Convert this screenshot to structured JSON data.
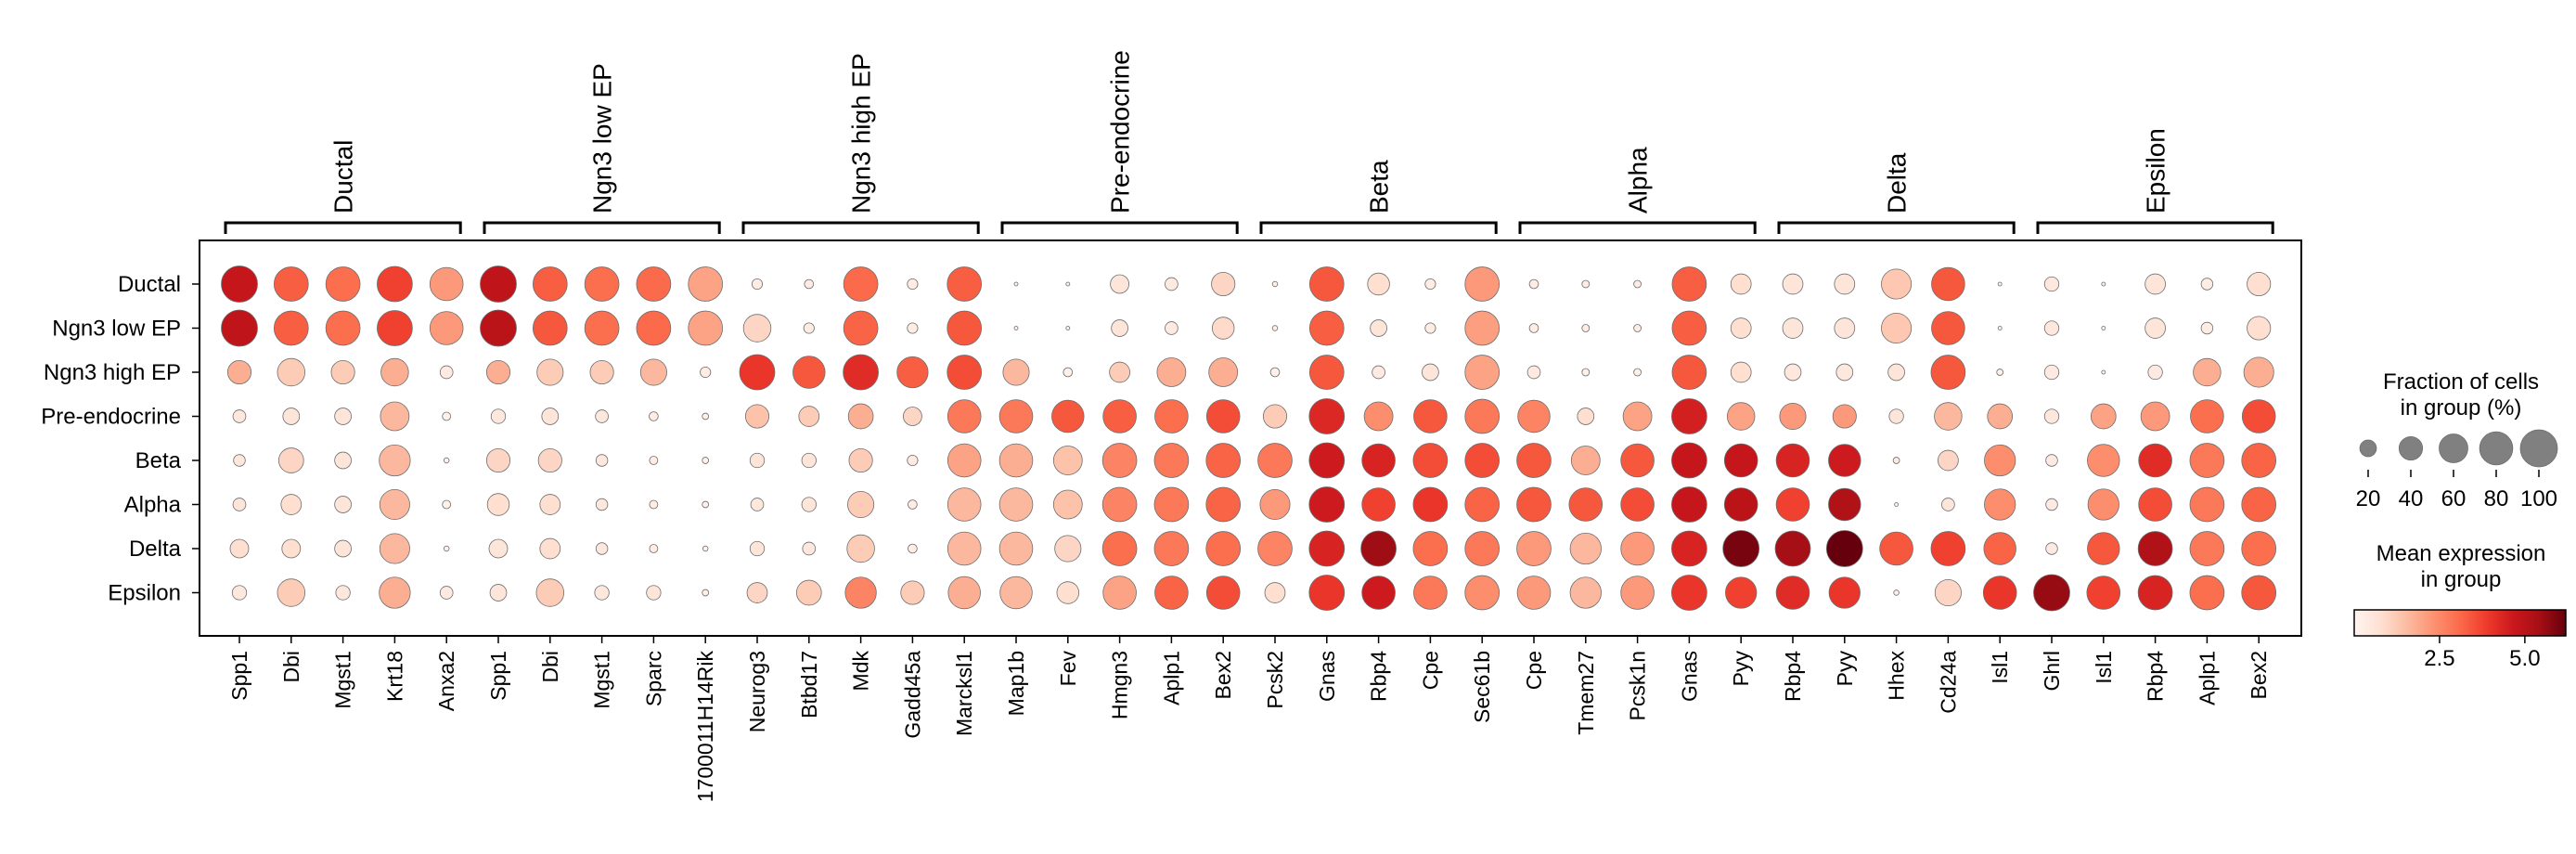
{
  "chart_data": {
    "type": "dotplot",
    "title": "",
    "rows": [
      "Ductal",
      "Ngn3 low EP",
      "Ngn3 high EP",
      "Pre-endocrine",
      "Beta",
      "Alpha",
      "Delta",
      "Epsilon"
    ],
    "group_labels": [
      "Ductal",
      "Ngn3 low EP",
      "Ngn3 high EP",
      "Pre-endocrine",
      "Beta",
      "Alpha",
      "Delta",
      "Epsilon"
    ],
    "groups": [
      {
        "name": "Ductal",
        "start": 0,
        "end": 4
      },
      {
        "name": "Ngn3 low EP",
        "start": 5,
        "end": 9
      },
      {
        "name": "Ngn3 high EP",
        "start": 10,
        "end": 14
      },
      {
        "name": "Pre-endocrine",
        "start": 15,
        "end": 19
      },
      {
        "name": "Beta",
        "start": 20,
        "end": 24
      },
      {
        "name": "Alpha",
        "start": 25,
        "end": 29
      },
      {
        "name": "Delta",
        "start": 30,
        "end": 34
      },
      {
        "name": "Epsilon",
        "start": 35,
        "end": 39
      }
    ],
    "genes": [
      "Spp1",
      "Dbi",
      "Mgst1",
      "Krt18",
      "Anxa2",
      "Spp1",
      "Dbi",
      "Mgst1",
      "Sparc",
      "1700011H14Rik",
      "Neurog3",
      "Btbd17",
      "Mdk",
      "Gadd45a",
      "Marcksl1",
      "Map1b",
      "Fev",
      "Hmgn3",
      "Aplp1",
      "Bex2",
      "Pcsk2",
      "Gnas",
      "Rbp4",
      "Cpe",
      "Sec61b",
      "Cpe",
      "Tmem27",
      "Pcsk1n",
      "Gnas",
      "Pyy",
      "Rbp4",
      "Pyy",
      "Hhex",
      "Cd24a",
      "Isl1",
      "Ghrl",
      "Isl1",
      "Rbp4",
      "Aplp1",
      "Bex2"
    ],
    "fraction": [
      [
        95,
        85,
        85,
        90,
        80,
        95,
        85,
        85,
        85,
        85,
        8,
        6,
        85,
        8,
        85,
        1,
        1,
        25,
        12,
        40,
        2,
        85,
        35,
        8,
        85,
        6,
        4,
        4,
        85,
        30,
        30,
        30,
        65,
        80,
        1,
        15,
        1,
        30,
        10,
        40
      ],
      [
        95,
        85,
        85,
        90,
        80,
        95,
        85,
        85,
        85,
        85,
        55,
        8,
        85,
        8,
        85,
        1,
        1,
        20,
        12,
        35,
        2,
        85,
        20,
        8,
        85,
        6,
        4,
        4,
        85,
        30,
        30,
        30,
        65,
        80,
        1,
        15,
        1,
        30,
        10,
        40
      ],
      [
        40,
        55,
        40,
        55,
        12,
        40,
        50,
        40,
        50,
        8,
        90,
        75,
        90,
        70,
        85,
        50,
        6,
        30,
        60,
        60,
        6,
        85,
        12,
        20,
        85,
        12,
        4,
        4,
        85,
        30,
        20,
        20,
        20,
        85,
        3,
        15,
        1,
        15,
        55,
        65
      ],
      [
        12,
        20,
        20,
        60,
        5,
        15,
        20,
        12,
        6,
        3,
        40,
        30,
        45,
        25,
        80,
        80,
        75,
        80,
        80,
        80,
        40,
        90,
        60,
        80,
        85,
        75,
        20,
        60,
        90,
        55,
        50,
        40,
        15,
        55,
        45,
        15,
        45,
        60,
        80,
        80
      ],
      [
        10,
        45,
        20,
        70,
        2,
        40,
        40,
        10,
        5,
        3,
        15,
        15,
        40,
        8,
        80,
        80,
        60,
        85,
        85,
        85,
        85,
        90,
        80,
        85,
        85,
        85,
        60,
        80,
        90,
        80,
        80,
        75,
        3,
        30,
        70,
        10,
        75,
        80,
        85,
        85
      ],
      [
        12,
        30,
        20,
        65,
        5,
        35,
        30,
        10,
        5,
        3,
        12,
        15,
        50,
        6,
        80,
        80,
        60,
        85,
        85,
        85,
        65,
        90,
        80,
        85,
        85,
        85,
        80,
        80,
        90,
        80,
        80,
        75,
        1,
        12,
        70,
        10,
        70,
        80,
        85,
        85
      ],
      [
        25,
        25,
        20,
        65,
        2,
        25,
        30,
        10,
        5,
        2,
        15,
        12,
        55,
        6,
        80,
        80,
        50,
        85,
        85,
        85,
        85,
        90,
        90,
        85,
        85,
        85,
        70,
        80,
        90,
        95,
        90,
        95,
        80,
        85,
        75,
        10,
        75,
        85,
        85,
        85
      ],
      [
        15,
        55,
        15,
        70,
        12,
        20,
        55,
        15,
        15,
        3,
        30,
        45,
        70,
        40,
        75,
        75,
        35,
        80,
        80,
        80,
        30,
        90,
        80,
        80,
        85,
        80,
        70,
        80,
        90,
        70,
        80,
        70,
        2,
        50,
        80,
        95,
        80,
        85,
        85,
        85
      ]
    ],
    "mean_expression": [
      [
        4.8,
        3.3,
        3.0,
        3.8,
        2.2,
        4.9,
        3.3,
        3.0,
        3.1,
        2.0,
        0.3,
        0.3,
        3.1,
        0.3,
        3.3,
        0.2,
        0.2,
        0.6,
        0.4,
        1.0,
        0.2,
        3.4,
        0.8,
        0.3,
        2.2,
        0.3,
        0.3,
        0.3,
        3.3,
        0.8,
        0.6,
        0.6,
        1.3,
        3.4,
        0.1,
        0.5,
        0.1,
        0.6,
        0.3,
        0.8
      ],
      [
        4.9,
        3.3,
        3.0,
        3.8,
        2.2,
        5.0,
        3.4,
        3.0,
        3.1,
        2.0,
        1.0,
        0.3,
        3.2,
        0.3,
        3.4,
        0.2,
        0.2,
        0.6,
        0.4,
        0.9,
        0.2,
        3.3,
        0.6,
        0.3,
        2.1,
        0.3,
        0.3,
        0.3,
        3.3,
        0.8,
        0.6,
        0.6,
        1.3,
        3.4,
        0.1,
        0.5,
        0.1,
        0.6,
        0.3,
        0.8
      ],
      [
        1.8,
        1.2,
        1.2,
        1.8,
        0.4,
        1.8,
        1.2,
        1.2,
        1.6,
        0.3,
        4.0,
        3.4,
        4.2,
        3.3,
        3.6,
        1.6,
        0.2,
        1.2,
        1.8,
        1.8,
        0.2,
        3.4,
        0.4,
        0.6,
        2.0,
        0.4,
        0.2,
        0.2,
        3.4,
        0.8,
        0.5,
        0.5,
        0.6,
        3.4,
        0.2,
        0.4,
        0.1,
        0.4,
        1.8,
        1.8
      ],
      [
        0.5,
        0.6,
        0.6,
        1.6,
        0.2,
        0.5,
        0.6,
        0.5,
        0.3,
        0.2,
        1.4,
        1.2,
        1.8,
        1.0,
        2.8,
        2.8,
        3.4,
        3.3,
        3.0,
        3.6,
        1.2,
        4.3,
        2.4,
        3.4,
        2.8,
        2.6,
        0.8,
        2.0,
        4.5,
        2.0,
        2.2,
        2.2,
        0.6,
        1.6,
        1.8,
        0.5,
        2.0,
        2.2,
        3.0,
        3.6
      ],
      [
        0.5,
        1.0,
        0.6,
        1.6,
        0.2,
        1.0,
        1.0,
        0.5,
        0.3,
        0.2,
        0.6,
        0.6,
        1.2,
        0.4,
        2.0,
        1.8,
        1.4,
        2.6,
        2.8,
        3.2,
        2.8,
        4.6,
        4.4,
        3.6,
        3.6,
        3.4,
        1.8,
        3.4,
        4.8,
        4.8,
        4.4,
        4.6,
        0.4,
        1.0,
        2.4,
        0.4,
        2.4,
        4.2,
        2.8,
        3.2
      ],
      [
        0.6,
        0.8,
        0.6,
        1.6,
        0.2,
        0.8,
        0.8,
        0.5,
        0.3,
        0.2,
        0.5,
        0.6,
        1.2,
        0.3,
        1.6,
        1.6,
        1.4,
        2.6,
        2.8,
        3.2,
        2.2,
        4.6,
        3.8,
        4.0,
        3.2,
        3.4,
        3.4,
        3.6,
        4.8,
        5.0,
        3.8,
        5.2,
        0.2,
        0.6,
        2.4,
        0.4,
        2.4,
        3.6,
        2.8,
        3.2
      ],
      [
        0.8,
        0.8,
        0.6,
        1.6,
        0.2,
        0.6,
        0.8,
        0.5,
        0.3,
        0.2,
        0.6,
        0.5,
        1.2,
        0.3,
        1.6,
        1.6,
        1.0,
        3.0,
        2.8,
        3.0,
        2.6,
        4.4,
        5.5,
        3.0,
        2.8,
        2.2,
        1.6,
        2.2,
        4.4,
        6.0,
        5.4,
        6.2,
        3.4,
        3.8,
        3.2,
        0.4,
        3.4,
        5.2,
        2.8,
        3.0
      ],
      [
        0.5,
        1.2,
        0.5,
        1.8,
        0.4,
        0.6,
        1.2,
        0.5,
        0.6,
        0.2,
        1.0,
        1.2,
        2.6,
        1.2,
        1.8,
        1.6,
        0.8,
        2.0,
        3.2,
        3.6,
        0.8,
        4.0,
        4.6,
        2.8,
        2.4,
        2.2,
        1.6,
        2.2,
        4.0,
        3.8,
        4.2,
        4.0,
        0.2,
        1.0,
        4.0,
        5.6,
        3.8,
        4.4,
        3.0,
        3.4
      ]
    ],
    "size_legend": {
      "title_line1": "Fraction of cells",
      "title_line2": "in group (%)",
      "values": [
        20,
        40,
        60,
        80,
        100
      ],
      "labels": [
        "20",
        "40",
        "60",
        "80",
        "100"
      ]
    },
    "color_legend": {
      "title_line1": "Mean expression",
      "title_line2": "in group",
      "ticks": [
        2.5,
        5.0
      ],
      "tick_labels": [
        "2.5",
        "5.0"
      ],
      "vmin": 0,
      "vmax": 6.2
    },
    "colormap": [
      "#fff5f0",
      "#fee0d2",
      "#fcbba1",
      "#fc9272",
      "#fb6a4a",
      "#ef3b2c",
      "#cb181d",
      "#a50f15",
      "#67000d"
    ],
    "legend_placement": "right",
    "grid": false
  }
}
